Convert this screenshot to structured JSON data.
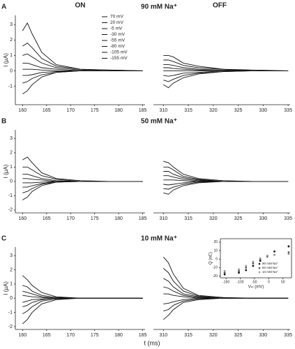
{
  "chart_data": [
    {
      "type": "line",
      "panel_label": "A",
      "title": "ON",
      "subtitle": "90 mM Na⁺",
      "ylabel": "I (µA)",
      "x": [
        160,
        161,
        162,
        164,
        167,
        172,
        178,
        185
      ],
      "xlim": [
        158.5,
        185.5
      ],
      "xticks": [
        160,
        165,
        170,
        175,
        180,
        185
      ],
      "ylim": [
        -2.2,
        3.6
      ],
      "yticks": [
        -1,
        0,
        1,
        2,
        3
      ],
      "legend": "top-middle",
      "series": [
        {
          "name": "70 mV",
          "color": "#111",
          "values": [
            2.6,
            3.1,
            2.4,
            1.2,
            0.4,
            0.1,
            0.05,
            0
          ]
        },
        {
          "name": "20 mV",
          "color": "#111",
          "values": [
            1.6,
            1.8,
            1.5,
            0.8,
            0.3,
            0.1,
            0.05,
            0
          ]
        },
        {
          "name": "-5 mV",
          "color": "#111",
          "values": [
            1.0,
            1.1,
            0.9,
            0.5,
            0.2,
            0.05,
            0,
            0
          ]
        },
        {
          "name": "-30 mV",
          "color": "#111",
          "values": [
            0.5,
            0.5,
            0.4,
            0.2,
            0.1,
            0,
            0,
            0
          ]
        },
        {
          "name": "-55 mV",
          "color": "#111",
          "values": [
            0.1,
            0.1,
            0.1,
            0.05,
            0,
            0,
            0,
            0
          ]
        },
        {
          "name": "-80 mV",
          "color": "#111",
          "values": [
            -0.3,
            -0.3,
            -0.25,
            -0.1,
            -0.05,
            0,
            0,
            0
          ]
        },
        {
          "name": "-105 mV",
          "color": "#111",
          "values": [
            -0.8,
            -0.7,
            -0.5,
            -0.25,
            -0.1,
            0,
            0,
            0
          ]
        },
        {
          "name": "-155 mV",
          "color": "#111",
          "values": [
            -1.5,
            -1.3,
            -0.9,
            -0.4,
            -0.1,
            0,
            0,
            0
          ]
        }
      ]
    },
    {
      "type": "line",
      "title": "OFF",
      "x": [
        310,
        311,
        312,
        314,
        317,
        322,
        328,
        335
      ],
      "xlim": [
        308,
        335.4
      ],
      "xticks": [
        310,
        315,
        320,
        325,
        330,
        335
      ],
      "ylim": [
        -2.2,
        3.6
      ],
      "series": [
        {
          "color": "#111",
          "values": [
            -0.9,
            -1.1,
            -0.8,
            -0.45,
            -0.2,
            -0.05,
            0,
            0
          ]
        },
        {
          "color": "#111",
          "values": [
            -0.6,
            -0.7,
            -0.55,
            -0.3,
            -0.15,
            -0.05,
            0,
            0
          ]
        },
        {
          "color": "#111",
          "values": [
            -0.3,
            -0.35,
            -0.3,
            -0.15,
            -0.1,
            0,
            0,
            0
          ]
        },
        {
          "color": "#111",
          "values": [
            0,
            0,
            0,
            0,
            0,
            0,
            0,
            0
          ]
        },
        {
          "color": "#111",
          "values": [
            0.2,
            0.2,
            0.15,
            0.1,
            0.05,
            0,
            0,
            0
          ]
        },
        {
          "color": "#111",
          "values": [
            0.4,
            0.4,
            0.35,
            0.2,
            0.1,
            0.05,
            0,
            0
          ]
        },
        {
          "color": "#111",
          "values": [
            0.7,
            0.7,
            0.6,
            0.35,
            0.2,
            0.1,
            0,
            0
          ]
        },
        {
          "color": "#111",
          "values": [
            1.0,
            1.0,
            0.9,
            0.5,
            0.3,
            0.1,
            0.05,
            0
          ]
        }
      ]
    },
    {
      "type": "line",
      "panel_label": "B",
      "subtitle": "50 mM Na⁺",
      "ylabel": "I (µA)",
      "x": [
        160,
        161,
        162,
        164,
        167,
        172,
        178,
        185
      ],
      "xlim": [
        158.5,
        185.5
      ],
      "xticks": [
        160,
        165,
        170,
        175,
        180,
        185
      ],
      "ylim": [
        -2.2,
        3.6
      ],
      "yticks": [
        -2,
        -1,
        0,
        1,
        2,
        3
      ],
      "series": [
        {
          "color": "#111",
          "values": [
            1.5,
            1.7,
            1.3,
            0.6,
            0.2,
            0.05,
            0,
            0
          ]
        },
        {
          "color": "#111",
          "values": [
            1.0,
            1.0,
            0.8,
            0.4,
            0.15,
            0,
            0,
            0
          ]
        },
        {
          "color": "#111",
          "values": [
            0.5,
            0.5,
            0.4,
            0.2,
            0.05,
            0,
            0,
            0
          ]
        },
        {
          "color": "#111",
          "values": [
            0.2,
            0.2,
            0.15,
            0.1,
            0,
            0,
            0,
            0
          ]
        },
        {
          "color": "#111",
          "values": [
            -0.1,
            -0.1,
            -0.1,
            -0.05,
            0,
            0,
            0,
            0
          ]
        },
        {
          "color": "#111",
          "values": [
            -0.4,
            -0.4,
            -0.3,
            -0.15,
            0,
            0,
            0,
            0
          ]
        },
        {
          "color": "#111",
          "values": [
            -0.8,
            -0.7,
            -0.5,
            -0.2,
            -0.05,
            0,
            0,
            0
          ]
        },
        {
          "color": "#111",
          "values": [
            -1.3,
            -1.1,
            -0.7,
            -0.3,
            -0.05,
            0,
            0,
            0
          ]
        }
      ]
    },
    {
      "type": "line",
      "x": [
        310,
        311,
        312,
        314,
        317,
        322,
        328,
        335
      ],
      "xlim": [
        308,
        335.4
      ],
      "xticks": [
        310,
        315,
        320,
        325,
        330,
        335
      ],
      "ylim": [
        -2.2,
        3.6
      ],
      "series": [
        {
          "color": "#111",
          "values": [
            -0.8,
            -0.9,
            -0.6,
            -0.3,
            -0.1,
            0,
            0,
            0
          ]
        },
        {
          "color": "#111",
          "values": [
            -0.5,
            -0.55,
            -0.4,
            -0.2,
            -0.05,
            0,
            0,
            0
          ]
        },
        {
          "color": "#111",
          "values": [
            -0.2,
            -0.25,
            -0.2,
            -0.1,
            0,
            0,
            0,
            0
          ]
        },
        {
          "color": "#111",
          "values": [
            0.1,
            0.1,
            0.1,
            0.05,
            0,
            0,
            0,
            0
          ]
        },
        {
          "color": "#111",
          "values": [
            0.4,
            0.4,
            0.3,
            0.15,
            0.05,
            0,
            0,
            0
          ]
        },
        {
          "color": "#111",
          "values": [
            0.7,
            0.7,
            0.5,
            0.25,
            0.1,
            0,
            0,
            0
          ]
        },
        {
          "color": "#111",
          "values": [
            1.0,
            1.0,
            0.8,
            0.35,
            0.15,
            0,
            0,
            0
          ]
        },
        {
          "color": "#111",
          "values": [
            1.4,
            1.3,
            1.0,
            0.5,
            0.2,
            0.05,
            0,
            0
          ]
        }
      ]
    },
    {
      "type": "line",
      "panel_label": "C",
      "subtitle": "10 mM Na⁺",
      "ylabel": "I (µA)",
      "xlabel": "t (ms)",
      "x": [
        160,
        161,
        162,
        164,
        167,
        172,
        178,
        185
      ],
      "xlim": [
        158.5,
        185.5
      ],
      "xticks": [
        160,
        165,
        170,
        175,
        180,
        185
      ],
      "ylim": [
        -2.2,
        3.6
      ],
      "yticks": [
        -2,
        -1,
        0,
        1,
        2,
        3
      ],
      "series": [
        {
          "color": "#111",
          "values": [
            1.6,
            1.3,
            0.9,
            0.4,
            0.1,
            0,
            0,
            0
          ]
        },
        {
          "color": "#111",
          "values": [
            0.9,
            0.8,
            0.5,
            0.2,
            0.05,
            0,
            0,
            0
          ]
        },
        {
          "color": "#111",
          "values": [
            0.5,
            0.4,
            0.3,
            0.1,
            0,
            0,
            0,
            0
          ]
        },
        {
          "color": "#111",
          "values": [
            0.2,
            0.15,
            0.1,
            0.05,
            0,
            0,
            0,
            0
          ]
        },
        {
          "color": "#111",
          "values": [
            -0.3,
            -0.2,
            -0.1,
            -0.05,
            0,
            0,
            0,
            0
          ]
        },
        {
          "color": "#111",
          "values": [
            -0.6,
            -0.5,
            -0.3,
            -0.1,
            0,
            0,
            0,
            0
          ]
        },
        {
          "color": "#111",
          "values": [
            -1.1,
            -0.9,
            -0.6,
            -0.2,
            -0.05,
            0,
            0,
            0
          ]
        },
        {
          "color": "#111",
          "values": [
            -1.8,
            -1.5,
            -1.0,
            -0.4,
            -0.1,
            0,
            0,
            0
          ]
        }
      ]
    },
    {
      "type": "line",
      "x": [
        310,
        311,
        312,
        314,
        317,
        322,
        328,
        335
      ],
      "xlim": [
        308,
        335.4
      ],
      "xticks": [
        310,
        315,
        320,
        325,
        330,
        335
      ],
      "ylim": [
        -2.2,
        3.6
      ],
      "series": [
        {
          "color": "#111",
          "values": [
            -1.5,
            -1.2,
            -0.8,
            -0.3,
            -0.1,
            0,
            0,
            0
          ]
        },
        {
          "color": "#111",
          "values": [
            -0.9,
            -0.8,
            -0.5,
            -0.2,
            -0.05,
            0,
            0,
            0
          ]
        },
        {
          "color": "#111",
          "values": [
            -0.4,
            -0.35,
            -0.25,
            -0.1,
            0,
            0,
            0,
            0
          ]
        },
        {
          "color": "#111",
          "values": [
            0.3,
            0.3,
            0.2,
            0.1,
            0,
            0,
            0,
            0
          ]
        },
        {
          "color": "#111",
          "values": [
            0.8,
            0.7,
            0.5,
            0.2,
            0.05,
            0,
            0,
            0
          ]
        },
        {
          "color": "#111",
          "values": [
            1.4,
            1.2,
            0.8,
            0.3,
            0.1,
            0,
            0,
            0
          ]
        },
        {
          "color": "#111",
          "values": [
            2.1,
            1.8,
            1.2,
            0.5,
            0.15,
            0,
            0,
            0
          ]
        },
        {
          "color": "#111",
          "values": [
            2.9,
            2.5,
            1.7,
            0.7,
            0.2,
            0.05,
            0,
            0
          ]
        }
      ]
    },
    {
      "type": "scatter",
      "xlabel": "Vₘ (mV)",
      "ylabel": "Q (nC)",
      "x": [
        -155,
        -105,
        -80,
        -55,
        -30,
        -5,
        20,
        70
      ],
      "xlim": [
        -170,
        80
      ],
      "xticks": [
        -150,
        -100,
        -50,
        0,
        50
      ],
      "ylim": [
        -22,
        24
      ],
      "yticks": [
        -20,
        -10,
        0,
        10,
        20
      ],
      "legend": "lower-right",
      "series": [
        {
          "name": "90 mM Na⁺",
          "color": "#111",
          "values": [
            -18,
            -16,
            -13,
            -8,
            -2,
            4,
            9,
            15
          ]
        },
        {
          "name": "50 mM Na⁺",
          "color": "#555",
          "values": [
            -16,
            -14,
            -10,
            -5,
            0,
            3,
            5,
            8
          ]
        },
        {
          "name": "10 mM Na⁺",
          "color": "#999",
          "values": [
            -14,
            -12,
            -8,
            -3,
            1,
            4,
            5,
            6
          ]
        }
      ]
    }
  ]
}
